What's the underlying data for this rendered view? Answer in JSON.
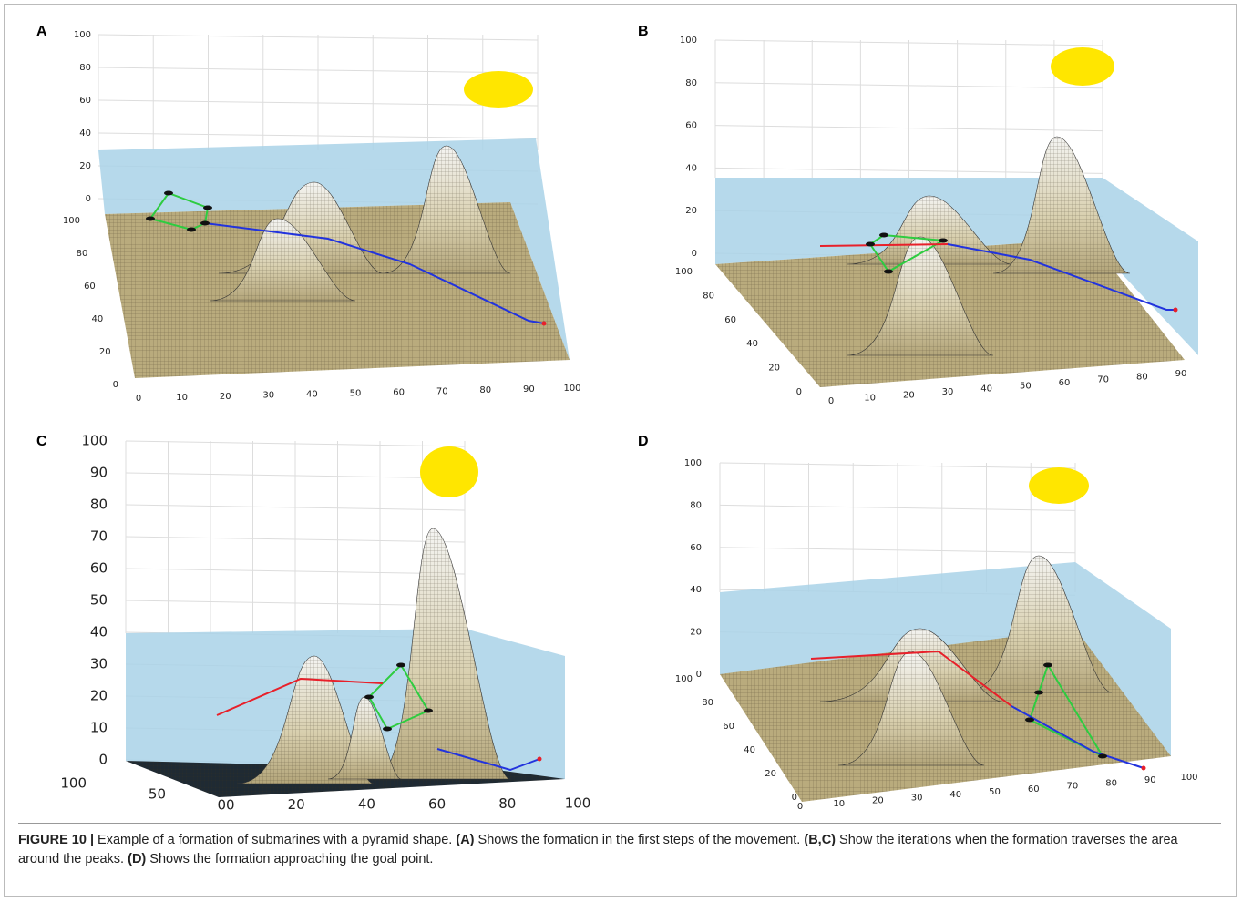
{
  "panels": [
    {
      "label": "A",
      "z_ticks": [
        0,
        20,
        40,
        60,
        80,
        100
      ],
      "y_ticks": [
        0,
        20,
        40,
        60,
        80,
        100
      ],
      "x_ticks": [
        0,
        10,
        20,
        30,
        40,
        50,
        60,
        70,
        80,
        90,
        100
      ]
    },
    {
      "label": "B",
      "z_ticks": [
        0,
        20,
        40,
        60,
        80,
        100
      ],
      "y_ticks": [
        0,
        20,
        40,
        60,
        80,
        100
      ],
      "x_ticks": [
        0,
        10,
        20,
        30,
        40,
        50,
        60,
        70,
        80,
        90
      ]
    },
    {
      "label": "C",
      "z_ticks": [
        0,
        10,
        20,
        30,
        40,
        50,
        60,
        70,
        80,
        90,
        100
      ],
      "y_ticks": [
        100,
        50
      ],
      "x_ticks": [
        "00",
        20,
        40,
        60,
        80,
        100
      ]
    },
    {
      "label": "D",
      "z_ticks": [
        0,
        20,
        40,
        60,
        80,
        100
      ],
      "y_ticks": [
        0,
        20,
        40,
        60,
        80,
        100
      ],
      "x_ticks": [
        0,
        10,
        20,
        30,
        40,
        50,
        60,
        70,
        80,
        90,
        100
      ]
    }
  ],
  "caption": {
    "parts": [
      {
        "text": "FIGURE 10 |",
        "bold": true
      },
      {
        "text": " Example of a formation of submarines with a pyramid shape. ",
        "bold": false
      },
      {
        "text": "(A)",
        "bold": true
      },
      {
        "text": " Shows the formation in the first steps of the movement. ",
        "bold": false
      },
      {
        "text": "(B,C)",
        "bold": true
      },
      {
        "text": " Show the iterations when the formation traverses the area around the peaks. ",
        "bold": false
      },
      {
        "text": "(D)",
        "bold": true
      },
      {
        "text": " Shows the formation approaching the goal point.",
        "bold": false
      }
    ]
  }
}
